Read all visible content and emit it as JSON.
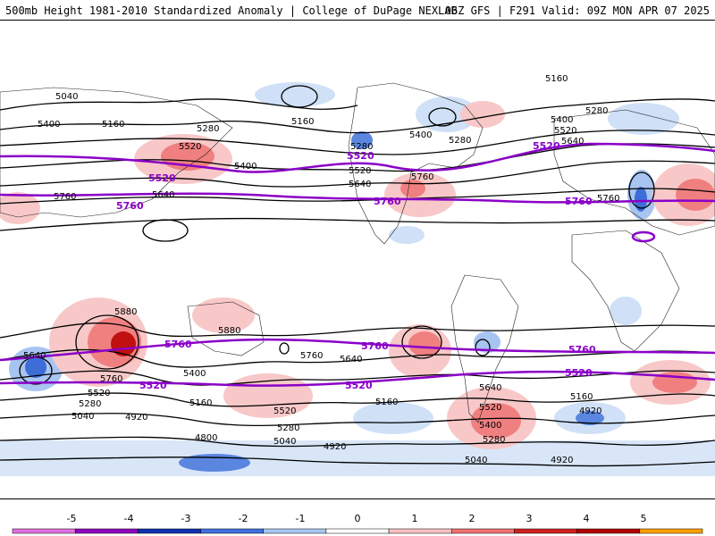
{
  "header": {
    "title_left": "500mb Height 1981-2010 Standardized Anomaly | College of DuPage NEXLAB",
    "title_right": "06Z GFS | F291 Valid: 09Z MON APR 07 2025"
  },
  "colorbar": {
    "ticks": [
      "-5",
      "-4",
      "-3",
      "-2",
      "-1",
      "0",
      "1",
      "2",
      "3",
      "4",
      "5"
    ],
    "colors": [
      "#e070e0",
      "#9000c0",
      "#1030b0",
      "#4070e0",
      "#a8c8f0",
      "#ffffff",
      "#f8c0c0",
      "#f07070",
      "#d02020",
      "#b00000",
      "#ffa000"
    ]
  },
  "map": {
    "contour_labels_black": [
      {
        "text": "5040"
      },
      {
        "text": "5400"
      },
      {
        "text": "5160"
      },
      {
        "text": "5280"
      },
      {
        "text": "5520"
      },
      {
        "text": "5400"
      },
      {
        "text": "5640"
      },
      {
        "text": "5760"
      },
      {
        "text": "5160"
      },
      {
        "text": "5280"
      },
      {
        "text": "5520"
      },
      {
        "text": "5640"
      },
      {
        "text": "5400"
      },
      {
        "text": "5280"
      },
      {
        "text": "5760"
      },
      {
        "text": "5160"
      },
      {
        "text": "5280"
      },
      {
        "text": "5400"
      },
      {
        "text": "5520"
      },
      {
        "text": "5640"
      },
      {
        "text": "5760"
      },
      {
        "text": "5880"
      },
      {
        "text": "5880"
      },
      {
        "text": "5760"
      },
      {
        "text": "5640"
      },
      {
        "text": "5640"
      },
      {
        "text": "5760"
      },
      {
        "text": "5400"
      },
      {
        "text": "5520"
      },
      {
        "text": "5280"
      },
      {
        "text": "5040"
      },
      {
        "text": "4920"
      },
      {
        "text": "5160"
      },
      {
        "text": "5520"
      },
      {
        "text": "5280"
      },
      {
        "text": "5040"
      },
      {
        "text": "4800"
      },
      {
        "text": "4920"
      },
      {
        "text": "5160"
      },
      {
        "text": "5640"
      },
      {
        "text": "5520"
      },
      {
        "text": "5400"
      },
      {
        "text": "5280"
      },
      {
        "text": "5040"
      },
      {
        "text": "4920"
      },
      {
        "text": "5160"
      },
      {
        "text": "4920"
      }
    ],
    "contour_labels_purple": [
      {
        "text": "5520"
      },
      {
        "text": "5520"
      },
      {
        "text": "5520"
      },
      {
        "text": "5760"
      },
      {
        "text": "5760"
      },
      {
        "text": "5760"
      },
      {
        "text": "5760"
      },
      {
        "text": "5760"
      },
      {
        "text": "5760"
      },
      {
        "text": "5520"
      },
      {
        "text": "5520"
      },
      {
        "text": "5520"
      }
    ]
  }
}
